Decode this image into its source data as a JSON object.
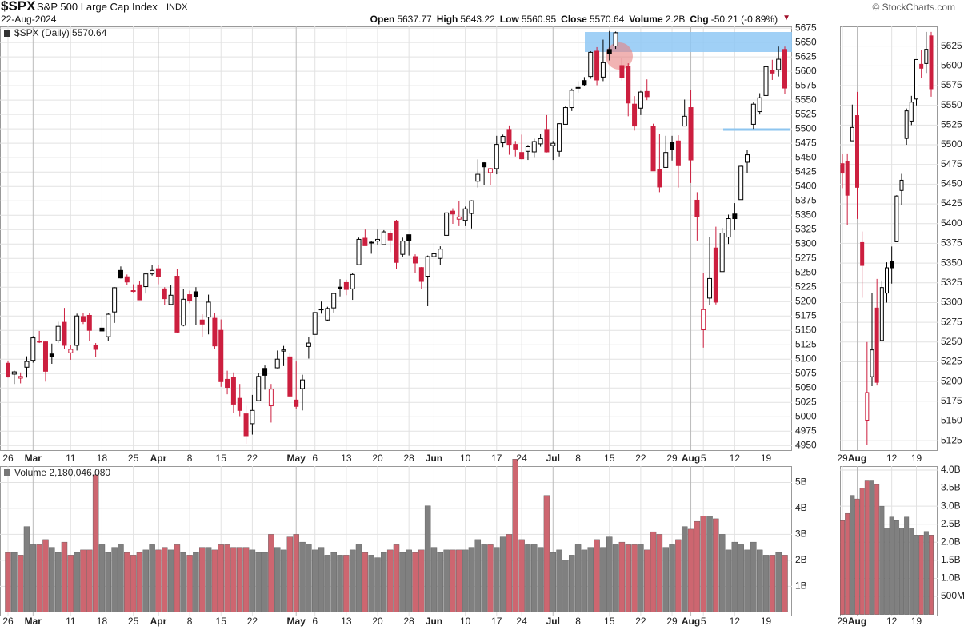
{
  "header": {
    "symbol": "$SPX",
    "name": "S&P 500 Large Cap Index",
    "exchange": "INDX",
    "date": "22-Aug-2024",
    "copyright": "© StockCharts.com",
    "stats": [
      {
        "label": "Open",
        "value": 5637.77
      },
      {
        "label": "High",
        "value": 5643.22
      },
      {
        "label": "Low",
        "value": 5560.95
      },
      {
        "label": "Close",
        "value": 5570.64
      },
      {
        "label": "Volume",
        "value": "2.2B"
      },
      {
        "label": "Chg",
        "value": "-50.21 (-0.89%)"
      }
    ]
  },
  "chart_data": [
    {
      "type": "candlestick",
      "legend": "$SPX (Daily) 5570.64",
      "grid": true,
      "up_color": "#000000",
      "down_color": "#cc1f3f",
      "volume_up_color": "#808080",
      "volume_down_color": "#cd6670",
      "categories": [
        "26",
        null,
        null,
        null,
        "Mar",
        null,
        null,
        null,
        null,
        null,
        "11",
        null,
        null,
        null,
        null,
        "18",
        null,
        null,
        null,
        null,
        "25",
        null,
        null,
        null,
        "Apr",
        null,
        null,
        null,
        null,
        "8",
        null,
        null,
        null,
        null,
        "15",
        null,
        null,
        null,
        null,
        "22",
        null,
        null,
        null,
        null,
        null,
        null,
        "May",
        null,
        null,
        "6",
        null,
        null,
        null,
        null,
        "13",
        null,
        null,
        null,
        null,
        "20",
        null,
        null,
        null,
        null,
        "28",
        null,
        null,
        null,
        "Jun",
        null,
        null,
        null,
        null,
        "10",
        null,
        null,
        null,
        null,
        "17",
        null,
        null,
        null,
        "24",
        null,
        null,
        null,
        null,
        "Jul",
        null,
        null,
        null,
        "8",
        null,
        null,
        null,
        null,
        "15",
        null,
        null,
        null,
        null,
        "22",
        null,
        null,
        null,
        null,
        "29",
        null,
        null,
        "Aug",
        null,
        "5",
        null,
        null,
        null,
        null,
        "12",
        null,
        null,
        null,
        null,
        "19",
        null,
        null,
        null
      ],
      "open": [
        5093,
        5074,
        5067,
        5086,
        5098,
        5131,
        5130,
        5109,
        5132,
        5164,
        5111,
        5124,
        5174,
        5176,
        5124,
        5154,
        5139,
        5182,
        5254,
        5243,
        5219,
        5229,
        5226,
        5248,
        5257,
        5222,
        5195,
        5244,
        5159,
        5212,
        5217,
        5168,
        5173,
        5171,
        5150,
        5065,
        5069,
        5032,
        5005,
        4988,
        5028,
        5084,
        5019,
        5085,
        5114,
        5104,
        5029,
        5049,
        5122,
        5143,
        5187,
        5168,
        5189,
        5225,
        5233,
        5222,
        5264,
        5310,
        5303,
        5305,
        5299,
        5319,
        5340,
        5282,
        5316,
        5278,
        5259,
        5244,
        5278,
        5275,
        5315,
        5357,
        5343,
        5341,
        5353,
        5409,
        5441,
        5424,
        5431,
        5476,
        5499,
        5473,
        5459,
        5461,
        5460,
        5474,
        5499,
        5471,
        5461,
        5508,
        5537,
        5572,
        5584,
        5591,
        5635,
        5590,
        5638,
        5644,
        5610,
        5608,
        5543,
        5536,
        5565,
        5505,
        5429,
        5433,
        5476,
        5479,
        5505,
        5537,
        5376,
        5151,
        5206,
        5293,
        5252,
        5312,
        5352,
        5377,
        5442,
        5508,
        5530,
        5558,
        5602,
        5603,
        5638
      ],
      "high": [
        5097,
        5080,
        5077,
        5105,
        5140,
        5149,
        5132,
        5127,
        5165,
        5189,
        5125,
        5179,
        5180,
        5180,
        5128,
        5175,
        5180,
        5225,
        5261,
        5247,
        5230,
        5235,
        5249,
        5264,
        5263,
        5225,
        5228,
        5256,
        5222,
        5219,
        5225,
        5178,
        5212,
        5180,
        5169,
        5080,
        5077,
        5057,
        5019,
        5038,
        5076,
        5089,
        5057,
        5115,
        5123,
        5110,
        5096,
        5073,
        5139,
        5181,
        5200,
        5191,
        5215,
        5239,
        5238,
        5250,
        5311,
        5325,
        5305,
        5325,
        5324,
        5323,
        5342,
        5311,
        5316,
        5282,
        5260,
        5280,
        5302,
        5296,
        5354,
        5362,
        5375,
        5365,
        5376,
        5447,
        5442,
        5432,
        5488,
        5490,
        5506,
        5479,
        5490,
        5472,
        5483,
        5491,
        5524,
        5479,
        5510,
        5539,
        5570,
        5583,
        5590,
        5635,
        5642,
        5655,
        5670,
        5669,
        5623,
        5614,
        5557,
        5566,
        5586,
        5509,
        5491,
        5488,
        5488,
        5489,
        5551,
        5567,
        5390,
        5250,
        5312,
        5330,
        5328,
        5351,
        5371,
        5436,
        5463,
        5546,
        5562,
        5608,
        5620,
        5643,
        5643
      ],
      "low": [
        5068,
        5057,
        5058,
        5068,
        5094,
        5128,
        5061,
        5092,
        5128,
        5117,
        5099,
        5115,
        5161,
        5131,
        5104,
        5149,
        5131,
        5163,
        5240,
        5229,
        5216,
        5203,
        5214,
        5245,
        5230,
        5194,
        5194,
        5146,
        5157,
        5197,
        5160,
        5138,
        5143,
        5117,
        5052,
        5039,
        5007,
        5001,
        4953,
        4969,
        5027,
        5047,
        4990,
        5084,
        5088,
        5035,
        5013,
        5011,
        5101,
        5143,
        5179,
        5166,
        5181,
        5209,
        5211,
        5203,
        5263,
        5297,
        5283,
        5299,
        5298,
        5286,
        5257,
        5278,
        5280,
        5250,
        5222,
        5192,
        5234,
        5263,
        5315,
        5335,
        5331,
        5331,
        5327,
        5398,
        5403,
        5403,
        5421,
        5468,
        5455,
        5452,
        5447,
        5446,
        5451,
        5469,
        5459,
        5446,
        5452,
        5508,
        5531,
        5563,
        5574,
        5587,
        5576,
        5583,
        5619,
        5639,
        5584,
        5522,
        5497,
        5524,
        5550,
        5427,
        5390,
        5433,
        5445,
        5398,
        5505,
        5406,
        5306,
        5120,
        5194,
        5195,
        5252,
        5300,
        5324,
        5377,
        5423,
        5500,
        5525,
        5550,
        5585,
        5591,
        5561
      ],
      "close": [
        5069,
        5078,
        5070,
        5096,
        5137,
        5130,
        5079,
        5104,
        5157,
        5124,
        5117,
        5175,
        5165,
        5150,
        5117,
        5149,
        5178,
        5224,
        5241,
        5234,
        5218,
        5203,
        5248,
        5254,
        5243,
        5205,
        5211,
        5147,
        5204,
        5202,
        5209,
        5161,
        5199,
        5123,
        5061,
        5051,
        5022,
        5011,
        4967,
        5011,
        5070,
        5072,
        5048,
        5100,
        5116,
        5036,
        5018,
        5064,
        5128,
        5181,
        5187,
        5188,
        5214,
        5223,
        5221,
        5247,
        5308,
        5297,
        5303,
        5308,
        5321,
        5307,
        5268,
        5305,
        5306,
        5267,
        5235,
        5278,
        5283,
        5291,
        5354,
        5352,
        5347,
        5361,
        5375,
        5421,
        5434,
        5431,
        5473,
        5487,
        5473,
        5465,
        5448,
        5469,
        5478,
        5483,
        5460,
        5475,
        5509,
        5537,
        5567,
        5572,
        5577,
        5633,
        5585,
        5615,
        5631,
        5667,
        5589,
        5545,
        5505,
        5564,
        5556,
        5427,
        5399,
        5459,
        5464,
        5436,
        5522,
        5446,
        5347,
        5186,
        5240,
        5199,
        5319,
        5344,
        5344,
        5435,
        5455,
        5543,
        5554,
        5608,
        5597,
        5621,
        5571
      ],
      "ylim": [
        4942,
        5678
      ],
      "yticks": [
        4950,
        4975,
        5000,
        5025,
        5050,
        5075,
        5100,
        5125,
        5150,
        5175,
        5200,
        5225,
        5250,
        5275,
        5300,
        5325,
        5350,
        5375,
        5400,
        5425,
        5450,
        5475,
        5500,
        5525,
        5550,
        5575,
        5600,
        5625,
        5650,
        5675
      ],
      "volume": {
        "label": "Volume 2,180,046,080",
        "values": [
          2300000000.0,
          2300000000.0,
          2200000000.0,
          3300000000.0,
          2600000000.0,
          2600000000.0,
          2800000000.0,
          2500000000.0,
          2300000000.0,
          2700000000.0,
          2200000000.0,
          2300000000.0,
          2400000000.0,
          2400000000.0,
          5300000000.0,
          2600000000.0,
          2300000000.0,
          2500000000.0,
          2600000000.0,
          2300000000.0,
          2200000000.0,
          2300000000.0,
          2400000000.0,
          2600000000.0,
          2400000000.0,
          2500000000.0,
          2400000000.0,
          2600000000.0,
          2300000000.0,
          2200000000.0,
          2300000000.0,
          2500000000.0,
          2500000000.0,
          2400000000.0,
          2600000000.0,
          2600000000.0,
          2500000000.0,
          2500000000.0,
          2500000000.0,
          2400000000.0,
          2300000000.0,
          2300000000.0,
          3000000000.0,
          2500000000.0,
          2400000000.0,
          2900000000.0,
          3000000000.0,
          2700000000.0,
          2600000000.0,
          2400000000.0,
          2500000000.0,
          2200000000.0,
          2300000000.0,
          2200000000.0,
          2200000000.0,
          2400000000.0,
          2600000000.0,
          2300000000.0,
          2200000000.0,
          2100000000.0,
          2300000000.0,
          2400000000.0,
          2600000000.0,
          2300000000.0,
          2400000000.0,
          2300000000.0,
          2400000000.0,
          4100000000.0,
          2500000000.0,
          2300000000.0,
          2400000000.0,
          2400000000.0,
          2400000000.0,
          2400000000.0,
          2500000000.0,
          2800000000.0,
          2600000000.0,
          2600000000.0,
          2500000000.0,
          2900000000.0,
          3000000000.0,
          5900000000.0,
          2800000000.0,
          2600000000.0,
          2600000000.0,
          2500000000.0,
          4500000000.0,
          2300000000.0,
          2400000000.0,
          2000000000.0,
          2200000000.0,
          2600000000.0,
          2400000000.0,
          2500000000.0,
          2800000000.0,
          2500000000.0,
          2900000000.0,
          2600000000.0,
          2700000000.0,
          2600000000.0,
          2600000000.0,
          2600000000.0,
          2400000000.0,
          3100000000.0,
          3000000000.0,
          2500000000.0,
          2600000000.0,
          2800000000.0,
          3300000000.0,
          3200000000.0,
          3500000000.0,
          3700000000.0,
          3700000000.0,
          3600000000.0,
          3000000000.0,
          2400000000.0,
          2700000000.0,
          2600000000.0,
          2400000000.0,
          2700000000.0,
          2400000000.0,
          2200000000.0,
          2200000000.0,
          2300000000.0,
          2200000000.0
        ],
        "ylim": [
          -130000000.0,
          5630000000.0
        ],
        "yticks": [
          {
            "value": 1000000000.0,
            "label": "1B"
          },
          {
            "value": 2000000000.0,
            "label": "2B"
          },
          {
            "value": 3000000000.0,
            "label": "3B"
          },
          {
            "value": 4000000000.0,
            "label": "4B"
          },
          {
            "value": 5000000000.0,
            "label": "5B"
          }
        ]
      }
    },
    {
      "type": "candlestick",
      "grid": true,
      "up_color": "#000000",
      "down_color": "#cc1f3f",
      "volume_up_color": "#808080",
      "volume_down_color": "#cd6670",
      "categories": [
        "29",
        null,
        null,
        "Aug",
        null,
        null,
        null,
        null,
        null,
        null,
        "12",
        null,
        null,
        null,
        null,
        "19",
        null,
        null,
        null
      ],
      "open": [
        5476,
        5479,
        5505,
        5537,
        5376,
        5151,
        5206,
        5293,
        5252,
        5312,
        5352,
        5377,
        5442,
        5508,
        5530,
        5558,
        5602,
        5603,
        5638
      ],
      "high": [
        5488,
        5489,
        5551,
        5567,
        5390,
        5250,
        5312,
        5330,
        5328,
        5351,
        5371,
        5436,
        5463,
        5546,
        5562,
        5608,
        5620,
        5643,
        5643
      ],
      "low": [
        5445,
        5398,
        5505,
        5406,
        5306,
        5120,
        5194,
        5195,
        5252,
        5300,
        5324,
        5377,
        5423,
        5500,
        5525,
        5550,
        5585,
        5591,
        5561
      ],
      "close": [
        5464,
        5436,
        5522,
        5446,
        5347,
        5186,
        5240,
        5199,
        5319,
        5344,
        5344,
        5435,
        5455,
        5543,
        5554,
        5608,
        5597,
        5621,
        5571
      ],
      "ylim": [
        5113,
        5650
      ],
      "yticks": [
        5125,
        5150,
        5175,
        5200,
        5225,
        5250,
        5275,
        5300,
        5325,
        5350,
        5375,
        5400,
        5425,
        5450,
        5475,
        5500,
        5525,
        5550,
        5575,
        5600,
        5625
      ],
      "volume": {
        "values": [
          2600000000.0,
          2800000000.0,
          3300000000.0,
          3200000000.0,
          3500000000.0,
          3700000000.0,
          3700000000.0,
          3600000000.0,
          3000000000.0,
          2400000000.0,
          2700000000.0,
          2600000000.0,
          2400000000.0,
          2700000000.0,
          2400000000.0,
          2200000000.0,
          2200000000.0,
          2300000000.0,
          2200000000.0
        ],
        "ylim": [
          -30000000.0,
          4110000000.0
        ],
        "yticks": [
          {
            "value": 500000000.0,
            "label": "500M"
          },
          {
            "value": 1000000000.0,
            "label": "1.0B"
          },
          {
            "value": 1500000000.0,
            "label": "1.5B"
          },
          {
            "value": 2000000000.0,
            "label": "2.0B"
          },
          {
            "value": 2500000000.0,
            "label": "2.5B"
          },
          {
            "value": 3000000000.0,
            "label": "3.0B"
          },
          {
            "value": 3500000000.0,
            "label": "3.5B"
          },
          {
            "value": 4000000000.0,
            "label": "4.0B"
          }
        ]
      }
    }
  ]
}
